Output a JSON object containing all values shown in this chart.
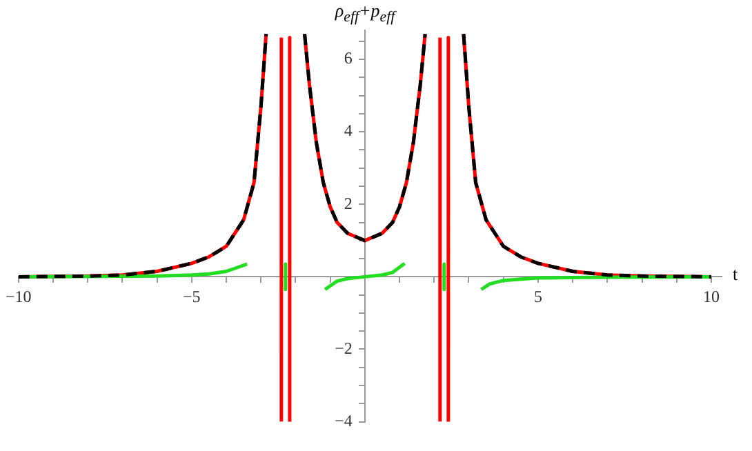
{
  "chart_data": {
    "type": "line",
    "xlabel": "t",
    "ylabel": "ρ$_{eff}$+p$_{eff}$",
    "xlim": [
      -10,
      10.3
    ],
    "ylim": [
      -4,
      6.8
    ],
    "xticks": [
      -10,
      {
        "value": -9,
        "label": null
      },
      {
        "value": -8,
        "label": null
      },
      {
        "value": -7,
        "label": null
      },
      {
        "value": -6,
        "label": null
      },
      -5,
      {
        "value": -4,
        "label": null
      },
      {
        "value": -3,
        "label": null
      },
      {
        "value": -2,
        "label": null
      },
      {
        "value": -1,
        "label": null
      },
      {
        "value": 1,
        "label": null
      },
      {
        "value": 2,
        "label": null
      },
      {
        "value": 3,
        "label": null
      },
      {
        "value": 4,
        "label": null
      },
      5,
      {
        "value": 6,
        "label": null
      },
      {
        "value": 7,
        "label": null
      },
      {
        "value": 8,
        "label": null
      },
      {
        "value": 9,
        "label": null
      },
      10
    ],
    "yticks": [
      -4,
      {
        "value": -3.5,
        "label": null
      },
      {
        "value": -3,
        "label": null
      },
      {
        "value": -2.5,
        "label": null
      },
      -2,
      {
        "value": -1.5,
        "label": null
      },
      {
        "value": -1,
        "label": null
      },
      {
        "value": -0.5,
        "label": null
      },
      {
        "value": 0.5,
        "label": null
      },
      {
        "value": 1,
        "label": null
      },
      {
        "value": 1.5,
        "label": null
      },
      2,
      {
        "value": 2.5,
        "label": null
      },
      {
        "value": 3,
        "label": null
      },
      {
        "value": 3.5,
        "label": null
      },
      4,
      {
        "value": 4.5,
        "label": null
      },
      {
        "value": 5,
        "label": null
      },
      {
        "value": 5.5,
        "label": null
      },
      6,
      {
        "value": 6.5,
        "label": null
      }
    ],
    "grid": false,
    "legend": false,
    "marker": "none",
    "series": [
      {
        "color": "#ff0000",
        "line_style": "solid",
        "x": [
          -10,
          -8,
          -7,
          -6,
          -5,
          -4.5,
          -4,
          -3.5,
          -3.2,
          -3,
          -2.85,
          -2.6,
          -2.41,
          -2.41,
          -2.3,
          -2.17,
          -2.17,
          -2,
          -1.74,
          -1.6,
          -1.4,
          -1.2,
          -1,
          -0.8,
          -0.5,
          0,
          0.5,
          0.8,
          1,
          1.2,
          1.4,
          1.6,
          1.74,
          2,
          2.17,
          2.17,
          2.3,
          2.41,
          2.41,
          2.6,
          2.85,
          3,
          3.2,
          3.5,
          4,
          4.5,
          5,
          6,
          7,
          8,
          10
        ],
        "values": [
          0,
          0.02,
          0.05,
          0.15,
          0.37,
          0.55,
          0.84,
          1.57,
          2.6,
          4.7,
          6.7,
          null,
          -4,
          6.6,
          null,
          6.6,
          -4,
          null,
          6.7,
          5.3,
          3.7,
          2.6,
          1.93,
          1.5,
          1.2,
          1.0,
          1.2,
          1.5,
          1.93,
          2.6,
          3.7,
          5.3,
          6.7,
          null,
          -4,
          6.6,
          null,
          6.6,
          -4,
          null,
          6.7,
          4.7,
          2.6,
          1.57,
          0.84,
          0.55,
          0.37,
          0.15,
          0.05,
          0.02,
          0
        ]
      },
      {
        "color": "#000000",
        "line_style": "dashed",
        "x": [
          -10,
          -8,
          -7,
          -6,
          -5,
          -4.5,
          -4,
          -3.5,
          -3.2,
          -3,
          -2.85,
          -2.3,
          -1.74,
          -1.6,
          -1.4,
          -1.2,
          -1,
          -0.8,
          -0.5,
          0,
          0.5,
          0.8,
          1,
          1.2,
          1.4,
          1.6,
          1.74,
          2.3,
          2.85,
          3,
          3.2,
          3.5,
          4,
          4.5,
          5,
          6,
          7,
          8,
          10
        ],
        "values": [
          0,
          0.02,
          0.05,
          0.15,
          0.37,
          0.55,
          0.84,
          1.57,
          2.6,
          4.7,
          6.7,
          null,
          6.7,
          5.3,
          3.7,
          2.6,
          1.93,
          1.5,
          1.2,
          1.0,
          1.2,
          1.5,
          1.93,
          2.6,
          3.7,
          5.3,
          6.7,
          null,
          6.7,
          4.7,
          2.6,
          1.57,
          0.84,
          0.55,
          0.37,
          0.15,
          0.05,
          0.02,
          0
        ]
      },
      {
        "color": "#22dd22",
        "line_style": "solid",
        "x": [
          -10,
          -6,
          -5,
          -4.5,
          -4,
          -3.7,
          -3.4,
          -2.9,
          -2.29,
          -2.29,
          -1.8,
          -1.15,
          -0.8,
          -0.5,
          0,
          0.5,
          0.8,
          1.15,
          1.8,
          2.29,
          2.29,
          2.9,
          3.36,
          3.6,
          4,
          5,
          7,
          10
        ],
        "values": [
          0,
          0.02,
          0.05,
          0.08,
          0.15,
          0.25,
          0.35,
          null,
          0.35,
          -0.35,
          null,
          -0.35,
          -0.12,
          -0.05,
          0,
          0.05,
          0.12,
          0.37,
          null,
          0.35,
          -0.35,
          null,
          -0.35,
          -0.2,
          -0.1,
          -0.03,
          -0.01,
          0
        ]
      }
    ]
  }
}
